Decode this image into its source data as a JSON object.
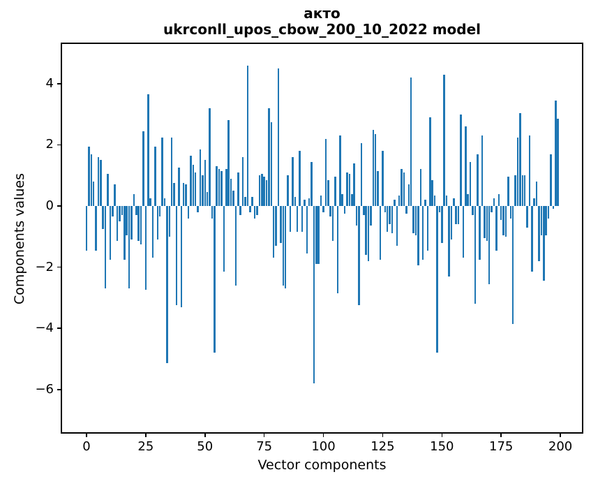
{
  "title": {
    "line1": "акто",
    "line2": "ukrconll_upos_cbow_200_10_2022 model"
  },
  "axes": {
    "xlabel": "Vector components",
    "ylabel": "Components values"
  },
  "chart_data": {
    "type": "bar",
    "title": "акто",
    "subtitle": "ukrconll_upos_cbow_200_10_2022 model",
    "xlabel": "Vector components",
    "ylabel": "Components values",
    "bar_color": "#1f77b4",
    "axis_color": "#000000",
    "grid": false,
    "legend": null,
    "x_start": 0,
    "xlim": [
      -10.3,
      209.1
    ],
    "ylim": [
      -7.4,
      5.3
    ],
    "xticks": [
      0,
      25,
      50,
      75,
      100,
      125,
      150,
      175,
      200
    ],
    "xtick_labels": [
      "0",
      "25",
      "50",
      "75",
      "100",
      "125",
      "150",
      "175",
      "200"
    ],
    "yticks": [
      4,
      2,
      0,
      -2,
      -4,
      -6
    ],
    "ytick_labels": [
      "4",
      "2",
      "0",
      "−2",
      "−4",
      "−6"
    ],
    "values": [
      -1.45,
      1.95,
      1.7,
      0.8,
      -1.45,
      1.6,
      1.5,
      -0.75,
      -2.7,
      1.05,
      -1.75,
      -0.35,
      0.7,
      -1.15,
      -0.5,
      -0.3,
      -1.75,
      -0.95,
      -2.7,
      -1.1,
      0.4,
      -0.3,
      -1.15,
      -1.25,
      2.45,
      -2.75,
      3.65,
      0.25,
      -1.7,
      1.95,
      -1.1,
      -0.35,
      2.25,
      0.25,
      -5.15,
      -1.0,
      2.25,
      0.75,
      -3.25,
      1.25,
      -3.3,
      0.75,
      0.7,
      -0.4,
      1.65,
      1.35,
      1.1,
      -0.2,
      1.85,
      1.0,
      1.5,
      0.45,
      3.2,
      -0.4,
      -4.8,
      1.3,
      1.2,
      1.15,
      -2.15,
      1.2,
      2.8,
      0.9,
      0.5,
      -2.6,
      1.1,
      -0.3,
      1.6,
      0.3,
      4.6,
      -0.2,
      0.3,
      -0.4,
      -0.3,
      1.0,
      1.05,
      0.95,
      0.85,
      3.2,
      2.75,
      -1.7,
      -1.3,
      4.5,
      -1.2,
      -2.6,
      -2.7,
      1.0,
      -0.85,
      1.6,
      0.3,
      -0.85,
      1.8,
      -0.85,
      0.2,
      -1.55,
      0.25,
      1.45,
      -5.8,
      -1.9,
      -1.9,
      0.35,
      -0.2,
      2.2,
      0.85,
      -0.35,
      -1.15,
      0.95,
      -2.85,
      2.3,
      0.4,
      -0.25,
      1.1,
      1.05,
      0.4,
      1.4,
      -0.65,
      -3.25,
      2.05,
      -0.3,
      -1.6,
      -1.8,
      -0.65,
      2.5,
      2.35,
      1.15,
      -1.75,
      1.8,
      -0.2,
      -0.85,
      -0.6,
      -0.9,
      0.2,
      -1.3,
      0.35,
      1.2,
      1.1,
      -0.25,
      0.7,
      4.2,
      -0.9,
      -0.95,
      -1.95,
      1.2,
      -1.75,
      0.2,
      -1.45,
      2.9,
      0.85,
      0.35,
      -4.8,
      -0.2,
      -1.2,
      4.3,
      0.35,
      -2.3,
      -1.1,
      0.25,
      -0.6,
      -0.6,
      3.0,
      -1.7,
      2.6,
      0.4,
      1.45,
      -0.3,
      -3.2,
      1.7,
      -1.75,
      2.3,
      -1.05,
      -1.15,
      -2.55,
      -0.2,
      0.25,
      -1.45,
      0.4,
      -0.45,
      -0.95,
      -1.0,
      0.95,
      -0.4,
      -3.85,
      1.0,
      2.25,
      3.05,
      1.0,
      1.0,
      -0.7,
      2.3,
      -2.15,
      0.25,
      0.8,
      -1.8,
      -0.95,
      -2.45,
      -0.95,
      -0.4,
      1.7,
      -0.1,
      3.45,
      2.85
    ]
  }
}
